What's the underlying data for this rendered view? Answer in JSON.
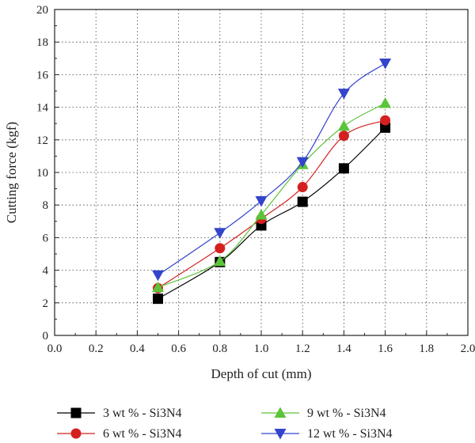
{
  "chart_data": {
    "type": "line",
    "xlabel": "Depth of cut (mm)",
    "ylabel": "Cutting force (kgf)",
    "xlim": [
      0.0,
      2.0
    ],
    "ylim": [
      0,
      20
    ],
    "x_ticks": [
      "0.0",
      "0.2",
      "0.4",
      "0.6",
      "0.8",
      "1.0",
      "1.2",
      "1.4",
      "1.6",
      "1.8",
      "2.0"
    ],
    "y_ticks": [
      "0",
      "2",
      "4",
      "6",
      "8",
      "10",
      "12",
      "14",
      "16",
      "18",
      "20"
    ],
    "x": [
      0.5,
      0.8,
      1.0,
      1.2,
      1.4,
      1.6
    ],
    "grid": "dashed",
    "legend_position": "bottom",
    "series": [
      {
        "name": "3 wt % - Si3N4",
        "marker": "square",
        "color": "#000000",
        "values": [
          2.25,
          4.5,
          6.75,
          8.2,
          10.25,
          12.75
        ]
      },
      {
        "name": "6 wt % - Si3N4",
        "marker": "circle",
        "color": "#d42020",
        "values": [
          2.9,
          5.35,
          7.15,
          9.1,
          12.25,
          13.2
        ]
      },
      {
        "name": "9 wt % - Si3N4",
        "marker": "triangle-up",
        "color": "#5cc43a",
        "values": [
          2.95,
          4.55,
          7.4,
          10.5,
          12.85,
          14.25
        ]
      },
      {
        "name": "12 wt % - Si3N4",
        "marker": "triangle-down",
        "color": "#3344cc",
        "values": [
          3.7,
          6.3,
          8.25,
          10.65,
          14.85,
          16.7
        ]
      }
    ]
  }
}
